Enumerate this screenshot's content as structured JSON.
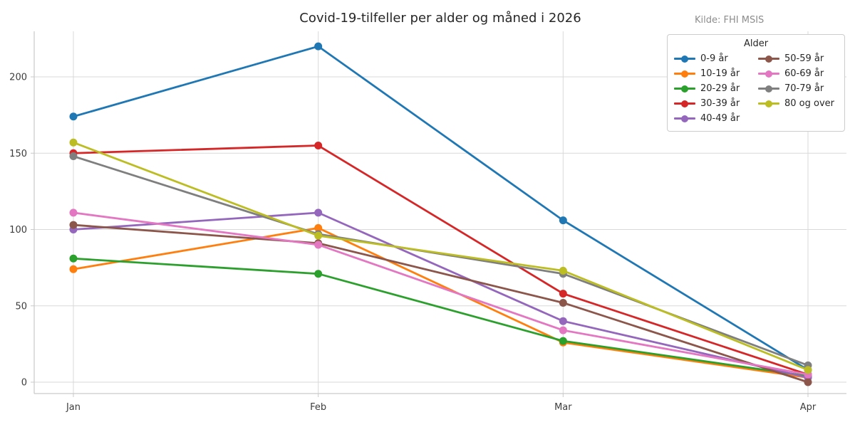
{
  "header": {
    "title": "Covid-19-tilfeller per alder og måned i 2026",
    "source": "Kilde: FHI MSIS"
  },
  "legend": {
    "title": "Alder"
  },
  "colors": {
    "grid": "#d9d9d9",
    "spine": "#c9c9c9",
    "tick_label": "#3d3d3d",
    "title": "#262626",
    "source": "#8c8c8c"
  },
  "chart_data": {
    "type": "line",
    "title": "Covid-19-tilfeller per alder og måned i 2026",
    "source_note": "Kilde: FHI MSIS",
    "xlabel": "",
    "ylabel": "",
    "categories": [
      "Jan",
      "Feb",
      "Mar",
      "Apr"
    ],
    "yticks": [
      0,
      50,
      100,
      150,
      200
    ],
    "ylim": [
      -8,
      230
    ],
    "grid": true,
    "legend_title": "Alder",
    "legend_position": "upper right",
    "series": [
      {
        "name": "0-9 år",
        "color": "#1f77b4",
        "values": [
          174,
          220,
          106,
          8
        ]
      },
      {
        "name": "10-19 år",
        "color": "#ff7f0e",
        "values": [
          74,
          101,
          26,
          3
        ]
      },
      {
        "name": "20-29 år",
        "color": "#2ca02c",
        "values": [
          81,
          71,
          27,
          4
        ]
      },
      {
        "name": "30-39 år",
        "color": "#d62728",
        "values": [
          150,
          155,
          58,
          5
        ]
      },
      {
        "name": "40-49 år",
        "color": "#9467bd",
        "values": [
          100,
          111,
          40,
          3
        ]
      },
      {
        "name": "50-59 år",
        "color": "#8c564b",
        "values": [
          103,
          91,
          52,
          0
        ]
      },
      {
        "name": "60-69 år",
        "color": "#e377c2",
        "values": [
          111,
          90,
          34,
          5
        ]
      },
      {
        "name": "70-79 år",
        "color": "#7f7f7f",
        "values": [
          148,
          97,
          71,
          11
        ]
      },
      {
        "name": "80 og over",
        "color": "#bcbd22",
        "values": [
          157,
          96,
          73,
          8
        ]
      }
    ]
  }
}
